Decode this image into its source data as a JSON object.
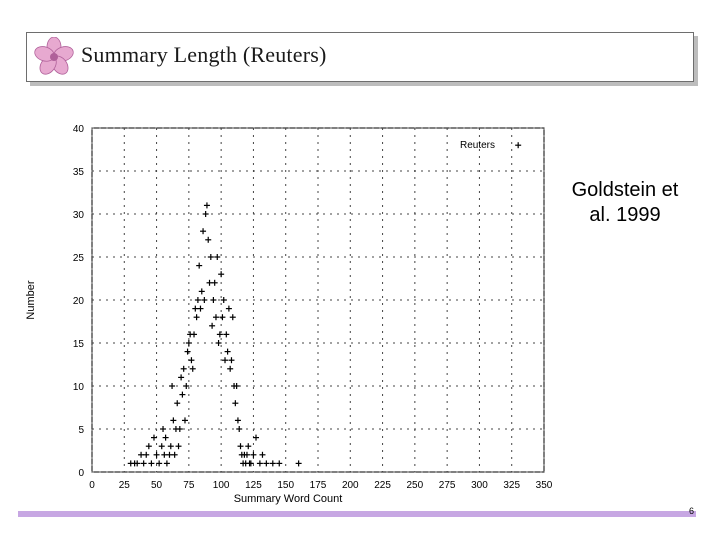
{
  "title": "Summary Length (Reuters)",
  "note": "Goldstein et al. 1999",
  "page_number": "6",
  "colors": {
    "title_shadow": "#bdbdbd",
    "bottom_bar": "#c7a7e3",
    "points": "#000000"
  },
  "icons": {
    "logo": "flower-icon"
  },
  "chart_data": {
    "type": "scatter",
    "title": "",
    "xlabel": "Summary Word Count",
    "ylabel": "Number",
    "xlim": [
      0,
      350
    ],
    "ylim": [
      0,
      40
    ],
    "x_ticks": [
      "0",
      "25",
      "50",
      "75",
      "100",
      "125",
      "150",
      "175",
      "200",
      "225",
      "250",
      "275",
      "300",
      "325",
      "350"
    ],
    "y_ticks": [
      "0",
      "5",
      "10",
      "15",
      "20",
      "25",
      "30",
      "35",
      "40"
    ],
    "grid": true,
    "legend_position": "top-right",
    "series": [
      {
        "name": "Reuters",
        "marker": "+",
        "points": [
          [
            30,
            1
          ],
          [
            33,
            1
          ],
          [
            35,
            1
          ],
          [
            38,
            2
          ],
          [
            40,
            1
          ],
          [
            42,
            2
          ],
          [
            44,
            3
          ],
          [
            46,
            1
          ],
          [
            48,
            4
          ],
          [
            50,
            2
          ],
          [
            52,
            1
          ],
          [
            54,
            3
          ],
          [
            55,
            5
          ],
          [
            56,
            2
          ],
          [
            57,
            4
          ],
          [
            58,
            1
          ],
          [
            60,
            2
          ],
          [
            61,
            3
          ],
          [
            62,
            10
          ],
          [
            63,
            6
          ],
          [
            64,
            2
          ],
          [
            65,
            5
          ],
          [
            66,
            8
          ],
          [
            67,
            3
          ],
          [
            68,
            5
          ],
          [
            69,
            11
          ],
          [
            70,
            9
          ],
          [
            71,
            12
          ],
          [
            72,
            6
          ],
          [
            73,
            10
          ],
          [
            74,
            14
          ],
          [
            75,
            15
          ],
          [
            76,
            16
          ],
          [
            77,
            13
          ],
          [
            78,
            12
          ],
          [
            79,
            16
          ],
          [
            80,
            19
          ],
          [
            81,
            18
          ],
          [
            82,
            20
          ],
          [
            83,
            24
          ],
          [
            84,
            19
          ],
          [
            85,
            21
          ],
          [
            86,
            28
          ],
          [
            87,
            20
          ],
          [
            88,
            30
          ],
          [
            89,
            31
          ],
          [
            90,
            27
          ],
          [
            91,
            22
          ],
          [
            92,
            25
          ],
          [
            93,
            17
          ],
          [
            94,
            20
          ],
          [
            95,
            22
          ],
          [
            96,
            18
          ],
          [
            97,
            25
          ],
          [
            98,
            15
          ],
          [
            99,
            16
          ],
          [
            100,
            23
          ],
          [
            101,
            18
          ],
          [
            102,
            20
          ],
          [
            103,
            13
          ],
          [
            104,
            16
          ],
          [
            105,
            14
          ],
          [
            106,
            19
          ],
          [
            107,
            12
          ],
          [
            108,
            13
          ],
          [
            109,
            18
          ],
          [
            110,
            10
          ],
          [
            111,
            8
          ],
          [
            112,
            10
          ],
          [
            113,
            6
          ],
          [
            114,
            5
          ],
          [
            115,
            3
          ],
          [
            116,
            2
          ],
          [
            117,
            1
          ],
          [
            118,
            2
          ],
          [
            119,
            1
          ],
          [
            120,
            2
          ],
          [
            121,
            3
          ],
          [
            122,
            1
          ],
          [
            123,
            1
          ],
          [
            125,
            2
          ],
          [
            127,
            4
          ],
          [
            130,
            1
          ],
          [
            132,
            2
          ],
          [
            135,
            1
          ],
          [
            140,
            1
          ],
          [
            145,
            1
          ],
          [
            160,
            1
          ],
          [
            330,
            38
          ]
        ]
      }
    ]
  }
}
